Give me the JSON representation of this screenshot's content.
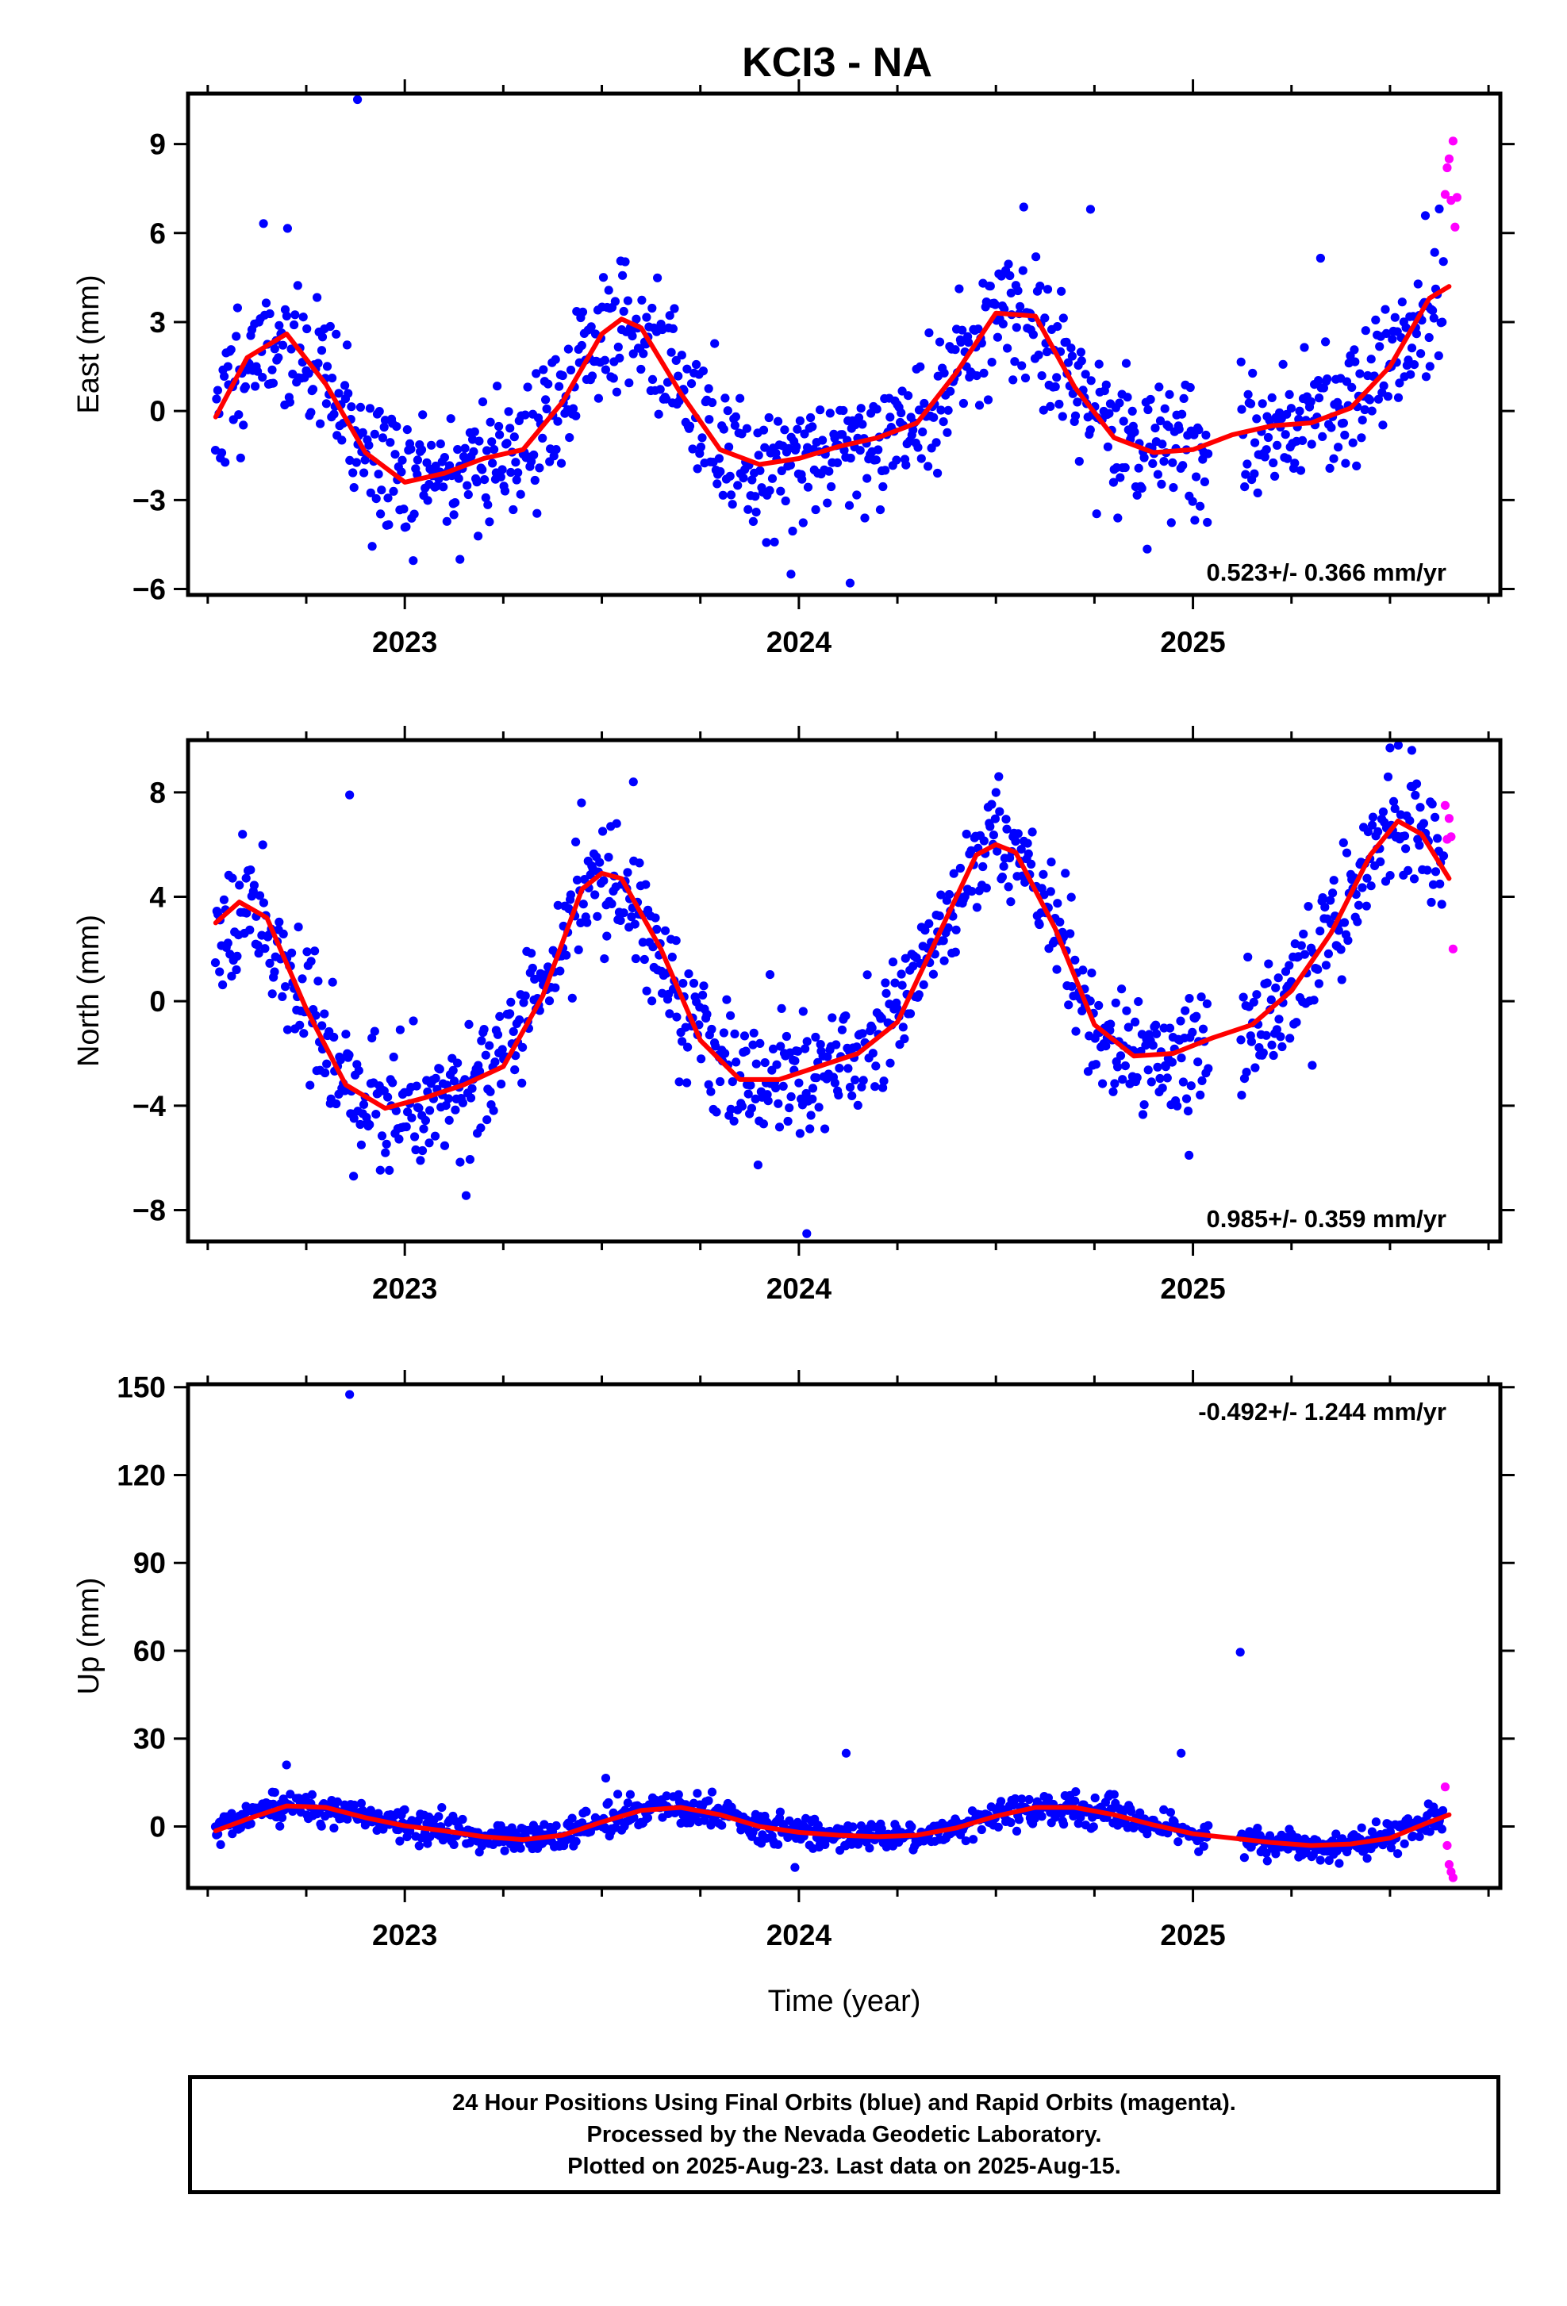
{
  "title": "KCI3 - NA",
  "colors": {
    "final": "#0000ff",
    "rapid": "#ff00ff",
    "model": "#ff0000"
  },
  "footer": {
    "line1": "24 Hour Positions Using Final Orbits (blue) and Rapid Orbits (magenta).",
    "line2": "Processed by the Nevada Geodetic Laboratory.",
    "line3": "Plotted on 2025-Aug-23. Last data on 2025-Aug-15."
  },
  "chart_data": [
    {
      "type": "scatter",
      "panel": "east",
      "ylabel": "East (mm)",
      "xlabel": "",
      "xlim": [
        2022.45,
        2025.78
      ],
      "ylim": [
        -6.2,
        10.7
      ],
      "yticks": [
        -6,
        -3,
        0,
        3,
        6,
        9
      ],
      "ytick_labels": [
        "−6",
        "−3",
        "0",
        "3",
        "6",
        "9"
      ],
      "xticks": [
        2023,
        2024,
        2025
      ],
      "xtick_labels": [
        "2023",
        "2024",
        "2025"
      ],
      "rate": "0.523+/- 0.366 mm/yr",
      "rate_position": "bottom-right",
      "model": {
        "x": [
          2022.52,
          2022.6,
          2022.7,
          2022.8,
          2022.9,
          2023.0,
          2023.1,
          2023.2,
          2023.3,
          2023.4,
          2023.5,
          2023.55,
          2023.6,
          2023.7,
          2023.8,
          2023.9,
          2024.0,
          2024.1,
          2024.2,
          2024.3,
          2024.4,
          2024.5,
          2024.6,
          2024.7,
          2024.8,
          2024.9,
          2025.0,
          2025.1,
          2025.2,
          2025.3,
          2025.4,
          2025.5,
          2025.6,
          2025.65
        ],
        "y": [
          -0.2,
          1.8,
          2.6,
          0.9,
          -1.4,
          -2.4,
          -2.1,
          -1.6,
          -1.3,
          0.3,
          2.6,
          3.1,
          2.8,
          0.6,
          -1.3,
          -1.8,
          -1.6,
          -1.2,
          -0.9,
          -0.4,
          1.3,
          3.3,
          3.2,
          0.8,
          -0.9,
          -1.4,
          -1.3,
          -0.8,
          -0.5,
          -0.4,
          0.1,
          1.5,
          3.8,
          4.2
        ]
      },
      "final_points": [
        {
          "x": 2022.88,
          "y": 10.5
        },
        {
          "x": 2023.14,
          "y": -5.0
        },
        {
          "x": 2024.13,
          "y": -5.8
        },
        {
          "x": 2024.74,
          "y": 6.8
        },
        {
          "x": 2023.98,
          "y": -5.5
        }
      ],
      "rapid_points": [
        {
          "x": 2025.64,
          "y": 7.3
        },
        {
          "x": 2025.645,
          "y": 8.2
        },
        {
          "x": 2025.65,
          "y": 8.5
        },
        {
          "x": 2025.655,
          "y": 7.1
        },
        {
          "x": 2025.66,
          "y": 9.1
        },
        {
          "x": 2025.665,
          "y": 6.2
        },
        {
          "x": 2025.67,
          "y": 7.2
        }
      ],
      "scatter": {
        "n": 1020,
        "x_start": 2022.52,
        "x_end": 2025.635,
        "amplitude": 1.9,
        "gap": [
          2025.04,
          2025.12
        ],
        "seed": 11
      }
    },
    {
      "type": "scatter",
      "panel": "north",
      "ylabel": "North (mm)",
      "xlabel": "",
      "xlim": [
        2022.45,
        2025.78
      ],
      "ylim": [
        -9.2,
        10.0
      ],
      "yticks": [
        -8,
        -4,
        0,
        4,
        8
      ],
      "ytick_labels": [
        "−8",
        "−4",
        "0",
        "4",
        "8"
      ],
      "xticks": [
        2023,
        2024,
        2025
      ],
      "xtick_labels": [
        "2023",
        "2024",
        "2025"
      ],
      "rate": "0.985+/- 0.359 mm/yr",
      "rate_position": "bottom-right",
      "model": {
        "x": [
          2022.52,
          2022.58,
          2022.65,
          2022.75,
          2022.85,
          2022.95,
          2023.05,
          2023.15,
          2023.25,
          2023.35,
          2023.45,
          2023.5,
          2023.55,
          2023.65,
          2023.75,
          2023.85,
          2023.95,
          2024.05,
          2024.15,
          2024.25,
          2024.35,
          2024.45,
          2024.5,
          2024.55,
          2024.65,
          2024.75,
          2024.85,
          2024.95,
          2025.05,
          2025.15,
          2025.25,
          2025.35,
          2025.45,
          2025.52,
          2025.58,
          2025.65
        ],
        "y": [
          3.0,
          3.8,
          3.2,
          -0.3,
          -3.2,
          -4.1,
          -3.7,
          -3.2,
          -2.5,
          0.2,
          4.3,
          4.9,
          4.7,
          2.0,
          -1.5,
          -3.0,
          -3.0,
          -2.5,
          -2.0,
          -0.8,
          2.4,
          5.6,
          6.0,
          5.7,
          2.8,
          -0.9,
          -2.1,
          -2.0,
          -1.4,
          -0.9,
          0.4,
          2.6,
          5.6,
          6.9,
          6.4,
          4.7
        ]
      },
      "final_points": [
        {
          "x": 2022.86,
          "y": 7.9
        },
        {
          "x": 2023.58,
          "y": 8.4
        },
        {
          "x": 2024.02,
          "y": -8.9
        },
        {
          "x": 2024.99,
          "y": -5.9
        },
        {
          "x": 2025.5,
          "y": 9.7
        },
        {
          "x": 2022.87,
          "y": -6.7
        }
      ],
      "rapid_points": [
        {
          "x": 2025.64,
          "y": 7.5
        },
        {
          "x": 2025.645,
          "y": 6.2
        },
        {
          "x": 2025.65,
          "y": 7.0
        },
        {
          "x": 2025.655,
          "y": 6.3
        },
        {
          "x": 2025.66,
          "y": 2.0
        }
      ],
      "scatter": {
        "n": 1020,
        "x_start": 2022.52,
        "x_end": 2025.635,
        "amplitude": 1.9,
        "gap": [
          2025.04,
          2025.12
        ],
        "seed": 23
      }
    },
    {
      "type": "scatter",
      "panel": "up",
      "ylabel": "Up (mm)",
      "xlabel": "Time (year)",
      "xlim": [
        2022.45,
        2025.78
      ],
      "ylim": [
        -21,
        151
      ],
      "yticks": [
        0,
        30,
        60,
        90,
        120,
        150
      ],
      "ytick_labels": [
        "0",
        "30",
        "60",
        "90",
        "120",
        "150"
      ],
      "xticks": [
        2023,
        2024,
        2025
      ],
      "xtick_labels": [
        "2023",
        "2024",
        "2025"
      ],
      "rate": "-0.492+/- 1.244 mm/yr",
      "rate_position": "top-right",
      "model": {
        "x": [
          2022.52,
          2022.6,
          2022.7,
          2022.8,
          2022.9,
          2023.0,
          2023.1,
          2023.2,
          2023.3,
          2023.4,
          2023.5,
          2023.6,
          2023.7,
          2023.8,
          2023.9,
          2024.0,
          2024.1,
          2024.2,
          2024.3,
          2024.4,
          2024.5,
          2024.6,
          2024.7,
          2024.8,
          2024.9,
          2025.0,
          2025.1,
          2025.2,
          2025.3,
          2025.4,
          2025.5,
          2025.6,
          2025.65
        ],
        "y": [
          -1.5,
          2.5,
          7.0,
          6.5,
          3.0,
          0.2,
          -1.5,
          -3.5,
          -4.5,
          -3.0,
          1.5,
          5.5,
          6.5,
          4.0,
          0.0,
          -2.0,
          -3.0,
          -3.5,
          -3.0,
          -0.5,
          3.5,
          6.5,
          6.5,
          4.0,
          0.5,
          -2.5,
          -4.0,
          -5.5,
          -6.5,
          -6.0,
          -4.0,
          1.5,
          4.0
        ]
      },
      "final_points": [
        {
          "x": 2022.86,
          "y": 147.5
        },
        {
          "x": 2025.12,
          "y": 59.5
        },
        {
          "x": 2024.12,
          "y": 25.0
        },
        {
          "x": 2024.97,
          "y": 25.0
        },
        {
          "x": 2022.7,
          "y": 21.0
        },
        {
          "x": 2023.51,
          "y": 16.5
        },
        {
          "x": 2023.99,
          "y": -14.0
        }
      ],
      "rapid_points": [
        {
          "x": 2025.64,
          "y": 13.5
        },
        {
          "x": 2025.645,
          "y": -6.5
        },
        {
          "x": 2025.65,
          "y": -13.0
        },
        {
          "x": 2025.655,
          "y": -15.5
        },
        {
          "x": 2025.66,
          "y": -17.5
        }
      ],
      "scatter": {
        "n": 1020,
        "x_start": 2022.52,
        "x_end": 2025.635,
        "amplitude": 4.2,
        "gap": [
          2025.04,
          2025.12
        ],
        "seed": 37
      }
    }
  ]
}
